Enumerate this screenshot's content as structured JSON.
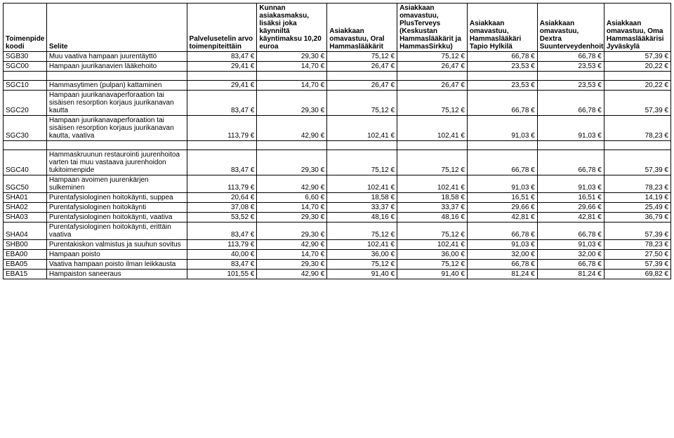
{
  "table": {
    "headers": [
      "Toimenpide koodi",
      "Selite",
      "Palvelusetelin arvo toimenpiteittäin",
      "Kunnan asiakasmaksu, lisäksi joka käynniltä käyntimaksu 10,20 euroa",
      "Asiakkaan omavastuu, Oral Hammaslääkärit",
      "Asiakkaan omavastuu, PlusTerveys (Keskustan Hammaslääkärit ja HammasSirkku)",
      "Asiakkaan omavastuu, Hammaslääkäri Tapio Hylkilä",
      "Asiakkaan omavastuu, Dextra Suunterveydenhoito",
      "Asiakkaan omavastuu, Oma Hammaslääkärisi Jyväskylä"
    ],
    "groups": [
      {
        "rows": [
          {
            "code": "SGB30",
            "desc": "Muu vaativa hampaan juurentäyttö",
            "vals": [
              "83,47 €",
              "29,30 €",
              "75,12 €",
              "75,12 €",
              "66,78 €",
              "66,78 €",
              "57,39 €"
            ]
          },
          {
            "code": "SGC00",
            "desc": "Hampaan juurikanavien lääkehoito",
            "vals": [
              "29,41 €",
              "14,70 €",
              "26,47 €",
              "26,47 €",
              "23,53 €",
              "23,53 €",
              "20,22 €"
            ]
          }
        ]
      },
      {
        "rows": [
          {
            "code": "SGC10",
            "desc": "Hammasytimen (pulpan) kattaminen",
            "vals": [
              "29,41 €",
              "14,70 €",
              "26,47 €",
              "26,47 €",
              "23,53 €",
              "23,53 €",
              "20,22 €"
            ]
          },
          {
            "code": "SGC20",
            "desc": "Hampaan juurikanavaperforaation tai sisäisen resorption korjaus juurikanavan kautta",
            "vals": [
              "83,47 €",
              "29,30 €",
              "75,12 €",
              "75,12 €",
              "66,78 €",
              "66,78 €",
              "57,39 €"
            ]
          },
          {
            "code": "SGC30",
            "desc": "Hampaan juurikanavaperforaation tai sisäisen resorption korjaus juurikanavan kautta, vaativa",
            "vals": [
              "113,79 €",
              "42,90 €",
              "102,41 €",
              "102,41 €",
              "91,03 €",
              "91,03 €",
              "78,23 €"
            ]
          }
        ]
      },
      {
        "rows": [
          {
            "code": "SGC40",
            "desc": "Hammaskruunun restaurointi juurenhoitoa varten tai muu vastaava juurenhoidon tukitoimenpide",
            "vals": [
              "83,47 €",
              "29,30 €",
              "75,12 €",
              "75,12 €",
              "66,78 €",
              "66,78 €",
              "57,39 €"
            ]
          },
          {
            "code": "SGC50",
            "desc": "Hampaan avoimen juurenkärjen sulkeminen",
            "vals": [
              "113,79 €",
              "42,90 €",
              "102,41 €",
              "102,41 €",
              "91,03 €",
              "91,03 €",
              "78,23 €"
            ]
          },
          {
            "code": "SHA01",
            "desc": "Purentafysiologinen hoitokäynti, suppea",
            "vals": [
              "20,64 €",
              "6,60 €",
              "18,58 €",
              "18,58 €",
              "16,51 €",
              "16,51 €",
              "14,19 €"
            ]
          },
          {
            "code": "SHA02",
            "desc": "Purentafysiologinen hoitokäynti",
            "vals": [
              "37,08 €",
              "14,70 €",
              "33,37 €",
              "33,37 €",
              "29,66 €",
              "29,66 €",
              "25,49 €"
            ]
          },
          {
            "code": "SHA03",
            "desc": "Purentafysiologinen hoitokäynti, vaativa",
            "vals": [
              "53,52 €",
              "29,30 €",
              "48,16 €",
              "48,16 €",
              "42,81 €",
              "42,81 €",
              "36,79 €"
            ]
          },
          {
            "code": "SHA04",
            "desc": "Purentafysiologinen hoitokäynti, erittäin vaativa",
            "vals": [
              "83,47 €",
              "29,30 €",
              "75,12 €",
              "75,12 €",
              "66,78 €",
              "66,78 €",
              "57,39 €"
            ]
          },
          {
            "code": "SHB00",
            "desc": "Purentakiskon valmistus ja suuhun sovitus",
            "vals": [
              "113,79 €",
              "42,90 €",
              "102,41 €",
              "102,41 €",
              "91,03 €",
              "91,03 €",
              "78,23 €"
            ]
          },
          {
            "code": "EBA00",
            "desc": "Hampaan poisto",
            "vals": [
              "40,00 €",
              "14,70 €",
              "36,00 €",
              "36,00 €",
              "32,00 €",
              "32,00 €",
              "27,50 €"
            ]
          },
          {
            "code": "EBA05",
            "desc": "Vaativa hampaan poisto ilman leikkausta",
            "vals": [
              "83,47 €",
              "29,30 €",
              "75,12 €",
              "75,12 €",
              "66,78 €",
              "66,78 €",
              "57,39 €"
            ]
          },
          {
            "code": "EBA15",
            "desc": "Hampaiston saneeraus",
            "vals": [
              "101,55 €",
              "42,90 €",
              "91,40 €",
              "91,40 €",
              "81,24 €",
              "81,24 €",
              "69,82 €"
            ]
          }
        ]
      }
    ]
  }
}
